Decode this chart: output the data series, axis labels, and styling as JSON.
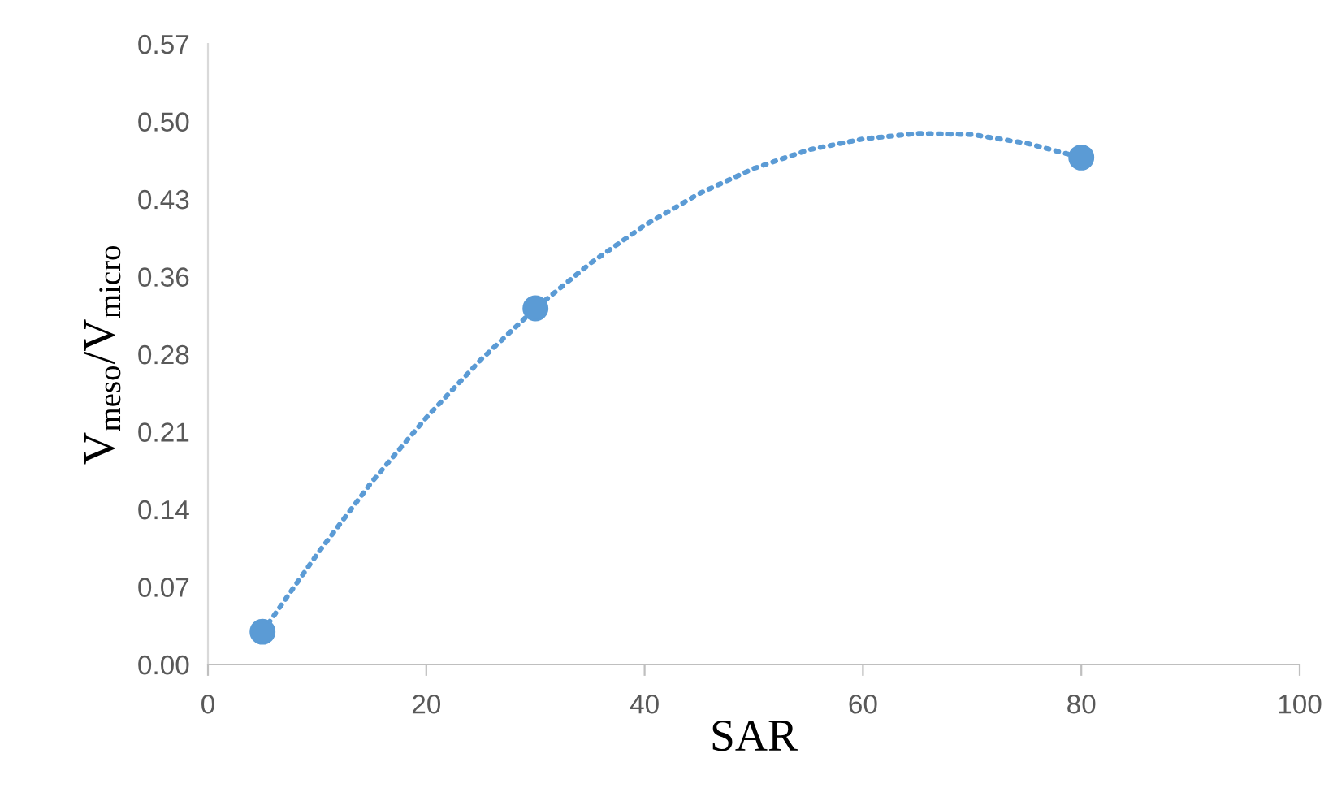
{
  "chart_data": {
    "type": "scatter",
    "xlabel": "SAR",
    "ylabel": "V$_{meso}$/V$_{micro}$",
    "xlim": [
      0,
      100
    ],
    "xticks": [
      0,
      20,
      40,
      60,
      80,
      100
    ],
    "ylim": [
      0,
      0.568
    ],
    "yticks": [
      {
        "value": 0,
        "label": "0.00"
      },
      {
        "value": 0.071,
        "label": "0.07"
      },
      {
        "value": 0.142,
        "label": "0.14"
      },
      {
        "value": 0.213,
        "label": "0.21"
      },
      {
        "value": 0.284,
        "label": "0.28"
      },
      {
        "value": 0.355,
        "label": "0.36"
      },
      {
        "value": 0.426,
        "label": "0.43"
      },
      {
        "value": 0.497,
        "label": "0.50"
      },
      {
        "value": 0.568,
        "label": "0.57"
      }
    ],
    "grid": false,
    "series": [
      {
        "type": "line",
        "color": "#5b9bd5",
        "line_style": "dotted",
        "marker": "none",
        "x": [
          5,
          10,
          15,
          20,
          25,
          30,
          35,
          40,
          45,
          50,
          55,
          60,
          65,
          70,
          75,
          80
        ],
        "values": [
          0.03,
          0.101,
          0.167,
          0.226,
          0.279,
          0.326,
          0.367,
          0.402,
          0.431,
          0.454,
          0.471,
          0.481,
          0.486,
          0.485,
          0.477,
          0.464
        ]
      },
      {
        "color": "#5b9bd5",
        "marker": "circle",
        "x": [
          5,
          30,
          80
        ],
        "values": [
          0.03,
          0.326,
          0.464
        ]
      }
    ]
  }
}
